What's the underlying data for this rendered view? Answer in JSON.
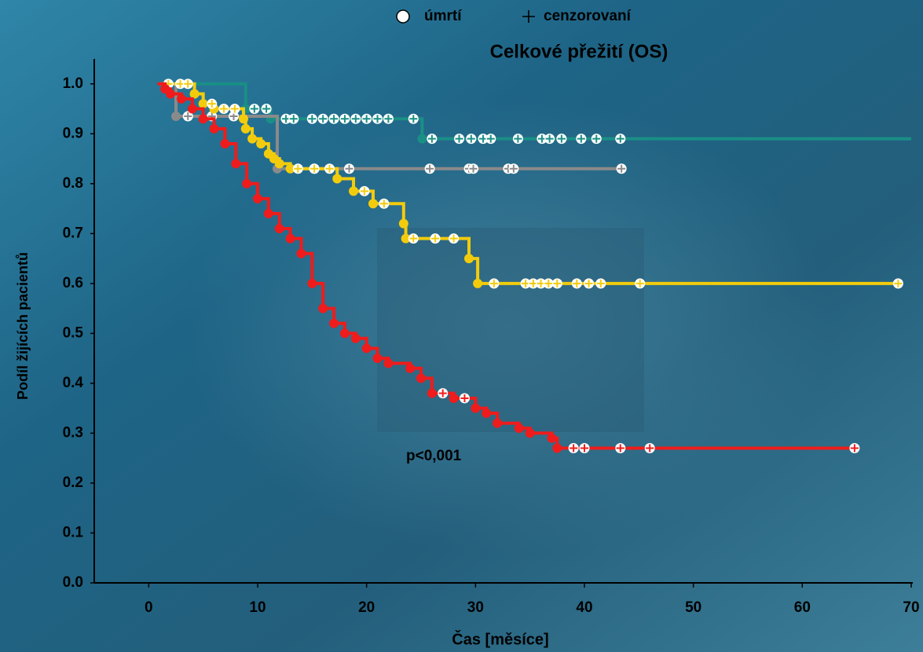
{
  "chart_data": {
    "type": "kaplan-meier",
    "title": "Celkové přežití (OS)",
    "legend": {
      "death": "úmrtí",
      "censored": "cenzorovaní"
    },
    "x_label": "Čas [měsíce]",
    "y_label": "Podíl žijících pacientů",
    "annotation": "p<0,001",
    "xlim": [
      -5,
      70
    ],
    "ylim": [
      0,
      1.05
    ],
    "xticks": [
      0,
      10,
      20,
      30,
      40,
      50,
      60,
      70
    ],
    "yticks": [
      {
        "value": 0,
        "label": "0.0"
      },
      0.1,
      0.2,
      0.3,
      0.4,
      0.5,
      0.6,
      0.7,
      0.8,
      0.9,
      {
        "value": 1,
        "label": "1.0"
      }
    ],
    "series": [
      {
        "color": "#1a8f86",
        "x": [
          1,
          8.9,
          11.2,
          25.1,
          70
        ],
        "values": [
          1.0,
          0.95,
          0.93,
          0.89,
          0.89
        ],
        "censored_x": [
          9.7,
          10.8,
          12.6,
          13.3,
          15,
          16,
          17,
          18,
          19,
          20,
          21,
          22,
          24.3,
          26,
          28.5,
          29.6,
          30.7,
          31.4,
          33.9,
          36.1,
          36.8,
          37.9,
          39.7,
          41.1,
          43.3
        ],
        "censored_values": [
          0.95,
          0.95,
          0.93,
          0.93,
          0.93,
          0.93,
          0.93,
          0.93,
          0.93,
          0.93,
          0.93,
          0.93,
          0.93,
          0.89,
          0.89,
          0.89,
          0.89,
          0.89,
          0.89,
          0.89,
          0.89,
          0.89,
          0.89,
          0.89,
          0.89
        ]
      },
      {
        "color": "#8a8a8a",
        "x": [
          2.3,
          2.5,
          11.8,
          43.4
        ],
        "values": [
          1.0,
          0.935,
          0.83,
          0.83
        ],
        "censored_x": [
          3.6,
          5.8,
          7.8,
          15.2,
          18.4,
          25.8,
          29.4,
          29.8,
          33,
          33.5,
          43.4
        ],
        "censored_values": [
          0.935,
          0.935,
          0.935,
          0.83,
          0.83,
          0.83,
          0.83,
          0.83,
          0.83,
          0.83,
          0.83
        ]
      },
      {
        "color": "#f2cc0c",
        "x": [
          1,
          4.2,
          5,
          6,
          8.7,
          8.9,
          9.5,
          10.3,
          11,
          11.5,
          12,
          13,
          17.3,
          18.8,
          20.6,
          23.4,
          23.6,
          29.4,
          30.2,
          68.8
        ],
        "values": [
          1.0,
          0.98,
          0.96,
          0.95,
          0.93,
          0.91,
          0.89,
          0.88,
          0.86,
          0.85,
          0.84,
          0.83,
          0.81,
          0.785,
          0.76,
          0.72,
          0.69,
          0.65,
          0.6,
          0.6
        ],
        "censored_x": [
          1.8,
          2.9,
          3.6,
          5.8,
          6.9,
          7.9,
          13.7,
          15.2,
          16.6,
          19.8,
          21.6,
          24.3,
          26.3,
          28,
          31.7,
          34.6,
          35.3,
          36,
          36.7,
          37.5,
          39.3,
          40.4,
          41.5,
          45.1,
          68.8
        ],
        "censored_values": [
          1.0,
          1.0,
          1.0,
          0.96,
          0.95,
          0.95,
          0.83,
          0.83,
          0.83,
          0.785,
          0.76,
          0.69,
          0.69,
          0.69,
          0.6,
          0.6,
          0.6,
          0.6,
          0.6,
          0.6,
          0.6,
          0.6,
          0.6,
          0.6,
          0.6
        ]
      },
      {
        "color": "#ee1c1c",
        "x": [
          0.8,
          1.5,
          2,
          3,
          4,
          5,
          6,
          7,
          8,
          9,
          10,
          11,
          12,
          13,
          14,
          15,
          16,
          17,
          18,
          19,
          20,
          21,
          22,
          24,
          25,
          26,
          28,
          30,
          31,
          32,
          34,
          35,
          37,
          37.5,
          64.8
        ],
        "values": [
          1.0,
          0.99,
          0.98,
          0.97,
          0.95,
          0.93,
          0.91,
          0.88,
          0.84,
          0.8,
          0.77,
          0.74,
          0.71,
          0.69,
          0.66,
          0.6,
          0.55,
          0.52,
          0.5,
          0.49,
          0.47,
          0.45,
          0.44,
          0.43,
          0.41,
          0.38,
          0.37,
          0.35,
          0.34,
          0.32,
          0.31,
          0.3,
          0.29,
          0.27,
          0.27
        ],
        "censored_x": [
          27,
          29,
          39,
          40,
          43.3,
          46,
          64.8
        ],
        "censored_values": [
          0.38,
          0.37,
          0.27,
          0.27,
          0.27,
          0.27,
          0.27
        ]
      }
    ]
  }
}
